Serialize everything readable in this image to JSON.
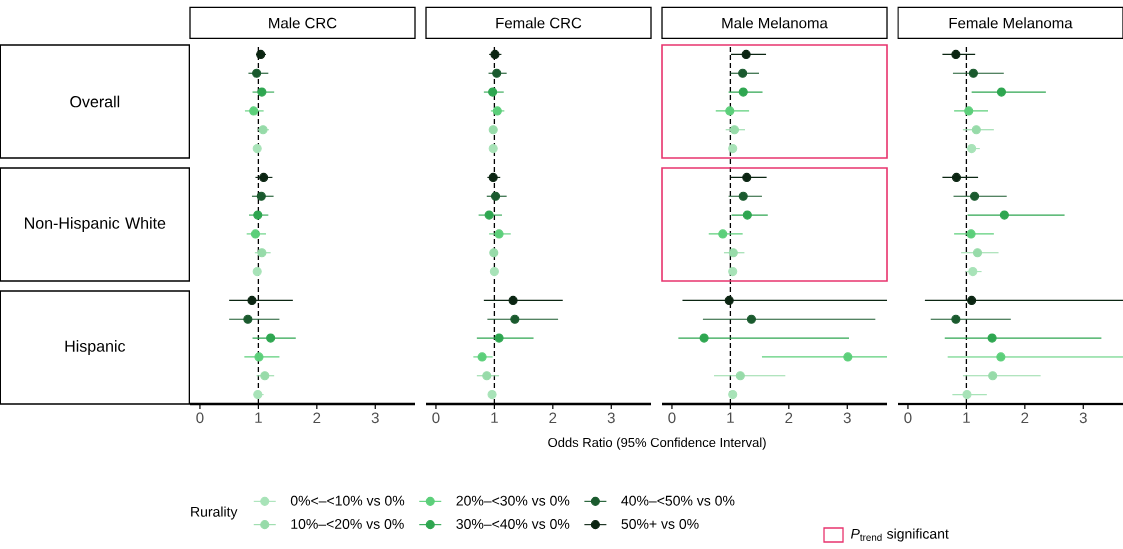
{
  "chart_data": [
    {
      "type": "scatter",
      "orientation": "horizontal",
      "title": "Male CRC",
      "legend": "bottom",
      "legend_title": "Rurality",
      "marker": "circle",
      "xlim": [
        -0.17,
        3.68
      ],
      "xticks": [
        0,
        1,
        2,
        3
      ],
      "categories": [
        "Overall",
        "Non-Hispanic White",
        "Hispanic"
      ],
      "ref_lines": [
        {
          "axis": "x",
          "value": 1,
          "color": "#000000",
          "line_style": "dashed"
        }
      ],
      "series": [
        {
          "name": "0%<–<10% vs 0%",
          "color": "#a8e3b8",
          "values": [
            0.98,
            0.98,
            0.99
          ],
          "errors": [
            [
              0.93,
              1.04
            ],
            [
              0.93,
              1.04
            ],
            [
              0.92,
              1.09
            ]
          ]
        },
        {
          "name": "10%–<20% vs 0%",
          "color": "#97dba9",
          "values": [
            1.08,
            1.06,
            1.11
          ],
          "errors": [
            [
              0.98,
              1.18
            ],
            [
              0.94,
              1.21
            ],
            [
              0.97,
              1.27
            ]
          ]
        },
        {
          "name": "20%–<30% vs 0%",
          "color": "#5ccf7a",
          "values": [
            0.92,
            0.95,
            1.01
          ],
          "errors": [
            [
              0.77,
              1.09
            ],
            [
              0.8,
              1.13
            ],
            [
              0.76,
              1.36
            ]
          ]
        },
        {
          "name": "30%–<40% vs 0%",
          "color": "#2ea650",
          "values": [
            1.06,
            0.99,
            1.21
          ],
          "errors": [
            [
              0.9,
              1.27
            ],
            [
              0.84,
              1.17
            ],
            [
              0.9,
              1.64
            ]
          ]
        },
        {
          "name": "40%–<50% vs 0%",
          "color": "#1a5a2e",
          "values": [
            0.97,
            1.05,
            0.82
          ],
          "errors": [
            [
              0.83,
              1.17
            ],
            [
              0.89,
              1.26
            ],
            [
              0.5,
              1.36
            ]
          ]
        },
        {
          "name": "50%+ vs 0%",
          "color": "#0b2512",
          "values": [
            1.04,
            1.09,
            0.89
          ],
          "errors": [
            [
              0.96,
              1.13
            ],
            [
              0.95,
              1.24
            ],
            [
              0.5,
              1.59
            ]
          ]
        }
      ]
    },
    {
      "type": "scatter",
      "orientation": "horizontal",
      "title": "Female CRC",
      "xlabel": "Odds Ratio (95% Confidence Interval)",
      "marker": "circle",
      "tick_labels": "x",
      "xlim": [
        -0.17,
        3.68
      ],
      "xticks": [
        0,
        1,
        2,
        3
      ],
      "categories": [
        null,
        null,
        null
      ],
      "ref_lines": [
        {
          "axis": "x",
          "value": 1,
          "color": "#000000",
          "line_style": "dashed"
        }
      ],
      "series": [
        {
          "color": "#a8e3b8",
          "values": [
            0.98,
            1.0,
            0.96
          ],
          "errors": [
            [
              0.94,
              1.03
            ],
            [
              0.95,
              1.05
            ],
            [
              0.91,
              1.03
            ]
          ]
        },
        {
          "color": "#97dba9",
          "values": [
            0.98,
            0.99,
            0.87
          ],
          "errors": [
            [
              0.94,
              1.03
            ],
            [
              0.94,
              1.06
            ],
            [
              0.7,
              1.08
            ]
          ]
        },
        {
          "color": "#5ccf7a",
          "values": [
            1.05,
            1.08,
            0.79
          ],
          "errors": [
            [
              0.94,
              1.17
            ],
            [
              0.91,
              1.28
            ],
            [
              0.64,
              0.97
            ]
          ]
        },
        {
          "color": "#2ea650",
          "values": [
            0.97,
            0.91,
            1.08
          ],
          "errors": [
            [
              0.82,
              1.16
            ],
            [
              0.73,
              1.13
            ],
            [
              0.7,
              1.67
            ]
          ]
        },
        {
          "color": "#1a5a2e",
          "values": [
            1.04,
            1.02,
            1.35
          ],
          "errors": [
            [
              0.9,
              1.21
            ],
            [
              0.87,
              1.21
            ],
            [
              0.88,
              2.09
            ]
          ]
        },
        {
          "color": "#0b2512",
          "values": [
            1.01,
            0.98,
            1.32
          ],
          "errors": [
            [
              0.91,
              1.12
            ],
            [
              0.88,
              1.1
            ],
            [
              0.82,
              2.17
            ]
          ]
        }
      ]
    },
    {
      "type": "scatter",
      "orientation": "horizontal",
      "title": "Male Melanoma",
      "marker": "circle",
      "tick_labels": "x",
      "xlim": [
        -0.17,
        3.68
      ],
      "xticks": [
        0,
        1,
        2,
        3
      ],
      "categories": [
        null,
        null,
        null
      ],
      "annotations": [
        "*P*$_{trend}$ significant"
      ],
      "ref_lines": [
        {
          "axis": "x",
          "value": 1,
          "color": "#000000",
          "line_style": "dashed"
        }
      ],
      "series": [
        {
          "color": "#a8e3b8",
          "values": [
            1.04,
            1.04,
            1.04
          ],
          "errors": [
            [
              0.99,
              1.1
            ],
            [
              0.99,
              1.1
            ],
            [
              0.99,
              1.1
            ]
          ]
        },
        {
          "color": "#97dba9",
          "values": [
            1.07,
            1.05,
            1.17
          ],
          "errors": [
            [
              0.92,
              1.25
            ],
            [
              0.89,
              1.24
            ],
            [
              0.72,
              1.94
            ]
          ]
        },
        {
          "color": "#5ccf7a",
          "values": [
            0.99,
            0.87,
            3.01
          ],
          "errors": [
            [
              0.75,
              1.32
            ],
            [
              0.63,
              1.21
            ],
            [
              1.54,
              3.68
            ]
          ]
        },
        {
          "color": "#2ea650",
          "values": [
            1.22,
            1.29,
            0.55
          ],
          "errors": [
            [
              0.97,
              1.55
            ],
            [
              1.02,
              1.64
            ],
            [
              0.11,
              3.03
            ]
          ]
        },
        {
          "color": "#1a5a2e",
          "values": [
            1.21,
            1.22,
            1.36
          ],
          "errors": [
            [
              1.0,
              1.49
            ],
            [
              0.97,
              1.54
            ],
            [
              0.53,
              3.48
            ]
          ]
        },
        {
          "color": "#0b2512",
          "values": [
            1.27,
            1.28,
            0.98
          ],
          "errors": [
            [
              1.01,
              1.61
            ],
            [
              1.01,
              1.62
            ],
            [
              0.18,
              3.68
            ]
          ]
        }
      ]
    },
    {
      "type": "scatter",
      "orientation": "horizontal",
      "title": "Female Melanoma",
      "marker": "circle",
      "tick_labels": "x",
      "xlim": [
        -0.17,
        3.68
      ],
      "xticks": [
        0,
        1,
        2,
        3
      ],
      "categories": [
        null,
        null,
        null
      ],
      "ref_lines": [
        {
          "axis": "x",
          "value": 1,
          "color": "#000000",
          "line_style": "dashed"
        }
      ],
      "series": [
        {
          "color": "#a8e3b8",
          "values": [
            1.09,
            1.11,
            1.01
          ],
          "errors": [
            [
              1.0,
              1.23
            ],
            [
              0.99,
              1.26
            ],
            [
              0.76,
              1.35
            ]
          ]
        },
        {
          "color": "#97dba9",
          "values": [
            1.17,
            1.19,
            1.45
          ],
          "errors": [
            [
              0.94,
              1.47
            ],
            [
              0.91,
              1.55
            ],
            [
              0.94,
              2.27
            ]
          ]
        },
        {
          "color": "#5ccf7a",
          "values": [
            1.04,
            1.08,
            1.59
          ],
          "errors": [
            [
              0.79,
              1.37
            ],
            [
              0.79,
              1.47
            ],
            [
              0.68,
              3.68
            ]
          ]
        },
        {
          "color": "#2ea650",
          "values": [
            1.6,
            1.65,
            1.44
          ],
          "errors": [
            [
              1.09,
              2.36
            ],
            [
              1.02,
              2.68
            ],
            [
              0.63,
              3.31
            ]
          ]
        },
        {
          "color": "#1a5a2e",
          "values": [
            1.12,
            1.14,
            0.82
          ],
          "errors": [
            [
              0.77,
              1.64
            ],
            [
              0.78,
              1.69
            ],
            [
              0.39,
              1.76
            ]
          ]
        },
        {
          "color": "#0b2512",
          "values": [
            0.82,
            0.83,
            1.09
          ],
          "errors": [
            [
              0.59,
              1.15
            ],
            [
              0.59,
              1.2
            ],
            [
              0.29,
              3.68
            ]
          ]
        }
      ]
    }
  ]
}
